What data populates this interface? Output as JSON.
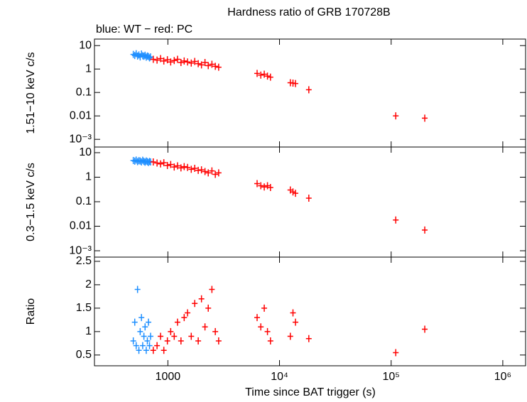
{
  "chart_data": [
    {
      "type": "scatter",
      "title": "Hardness ratio of GRB 170728B",
      "subtitle": "blue: WT − red: PC",
      "ylabel": "1.51−10 keV c/s",
      "xlim": [
        220,
        1600000
      ],
      "xlog": true,
      "ylim": [
        0.00047,
        19
      ],
      "ylog": true,
      "yticks": [
        {
          "value": 0.001,
          "label": "10⁻³"
        },
        0.01,
        0.1,
        1,
        10
      ],
      "series": [
        {
          "name": "WT",
          "color": "#1e8fff",
          "x": [
            490,
            505,
            520,
            535,
            550,
            565,
            580,
            595,
            610,
            625,
            640,
            655,
            670,
            685,
            700
          ],
          "values": [
            4.2,
            3.8,
            4.5,
            3.6,
            4.0,
            3.3,
            4.4,
            3.7,
            3.5,
            3.9,
            3.2,
            3.6,
            3.4,
            3.0,
            3.3
          ]
        },
        {
          "name": "PC",
          "color": "#ff0000",
          "x": [
            740,
            800,
            860,
            920,
            990,
            1060,
            1140,
            1220,
            1310,
            1400,
            1500,
            1620,
            1740,
            1870,
            2000,
            2150,
            2300,
            2480,
            2660,
            2850,
            6300,
            6800,
            7300,
            7800,
            8300,
            12500,
            13200,
            13900,
            18300,
            110000,
            200000
          ],
          "values": [
            2.6,
            2.4,
            2.8,
            2.2,
            2.5,
            2.0,
            2.3,
            2.6,
            1.9,
            2.2,
            2.0,
            1.8,
            2.1,
            1.7,
            1.5,
            1.9,
            1.4,
            1.6,
            1.3,
            1.2,
            0.65,
            0.55,
            0.6,
            0.5,
            0.45,
            0.26,
            0.25,
            0.24,
            0.13,
            0.01,
            0.008
          ]
        }
      ]
    },
    {
      "type": "scatter",
      "ylabel": "0.3−1.5 keV c/s",
      "xlim": [
        220,
        1600000
      ],
      "xlog": true,
      "ylim": [
        0.00055,
        17
      ],
      "ylog": true,
      "yticks": [
        {
          "value": 0.001,
          "label": "10⁻³"
        },
        0.01,
        0.1,
        1,
        10
      ],
      "series": [
        {
          "name": "WT",
          "color": "#1e8fff",
          "x": [
            490,
            505,
            520,
            535,
            550,
            565,
            580,
            595,
            610,
            625,
            640,
            655,
            670,
            685,
            700
          ],
          "values": [
            4.8,
            4.5,
            5.0,
            4.3,
            4.7,
            4.6,
            4.2,
            4.9,
            4.4,
            4.1,
            4.6,
            4.3,
            4.0,
            4.4,
            4.2
          ]
        },
        {
          "name": "PC",
          "color": "#ff0000",
          "x": [
            740,
            800,
            860,
            920,
            990,
            1060,
            1140,
            1220,
            1310,
            1400,
            1500,
            1620,
            1740,
            1870,
            2000,
            2150,
            2300,
            2480,
            2660,
            2850,
            6300,
            6800,
            7300,
            7800,
            8300,
            12500,
            13200,
            13900,
            18300,
            110000,
            200000
          ],
          "values": [
            4.2,
            3.8,
            3.5,
            3.9,
            3.0,
            3.3,
            2.6,
            2.9,
            2.4,
            2.7,
            2.5,
            2.1,
            2.3,
            1.9,
            2.0,
            1.7,
            1.5,
            1.8,
            1.3,
            1.5,
            0.55,
            0.45,
            0.4,
            0.45,
            0.38,
            0.3,
            0.25,
            0.22,
            0.14,
            0.018,
            0.007
          ]
        }
      ]
    },
    {
      "type": "scatter",
      "ylabel": "Ratio",
      "xlabel": "Time since BAT trigger (s)",
      "xlim": [
        220,
        1600000
      ],
      "xlog": true,
      "ylim": [
        0.27,
        2.59
      ],
      "ylog": false,
      "xticks": [
        1000,
        {
          "value": 10000,
          "label": "10⁴"
        },
        {
          "value": 100000,
          "label": "10⁵"
        },
        {
          "value": 1000000,
          "label": "10⁶"
        }
      ],
      "yticks": [
        0.5,
        1,
        1.5,
        2,
        2.5
      ],
      "series": [
        {
          "name": "WT",
          "color": "#1e8fff",
          "x": [
            490,
            505,
            520,
            535,
            550,
            565,
            580,
            595,
            610,
            625,
            640,
            655,
            670,
            685,
            700
          ],
          "values": [
            0.8,
            1.2,
            0.7,
            1.9,
            0.6,
            1.0,
            1.3,
            0.7,
            0.9,
            1.1,
            0.6,
            0.8,
            1.2,
            0.7,
            0.9
          ]
        },
        {
          "name": "PC",
          "color": "#ff0000",
          "x": [
            740,
            800,
            860,
            920,
            990,
            1060,
            1140,
            1220,
            1310,
            1400,
            1500,
            1620,
            1740,
            1870,
            2000,
            2150,
            2300,
            2480,
            2660,
            2850,
            6300,
            6800,
            7300,
            7800,
            8300,
            12500,
            13200,
            13900,
            18300,
            110000,
            200000
          ],
          "values": [
            0.6,
            0.7,
            0.9,
            0.6,
            0.8,
            1.0,
            0.9,
            1.2,
            0.8,
            1.3,
            1.4,
            0.9,
            1.6,
            0.8,
            1.7,
            1.1,
            1.5,
            1.9,
            1.0,
            0.8,
            1.3,
            1.1,
            1.5,
            1.0,
            0.8,
            0.9,
            1.4,
            1.2,
            0.85,
            0.55,
            1.05
          ]
        }
      ]
    }
  ]
}
